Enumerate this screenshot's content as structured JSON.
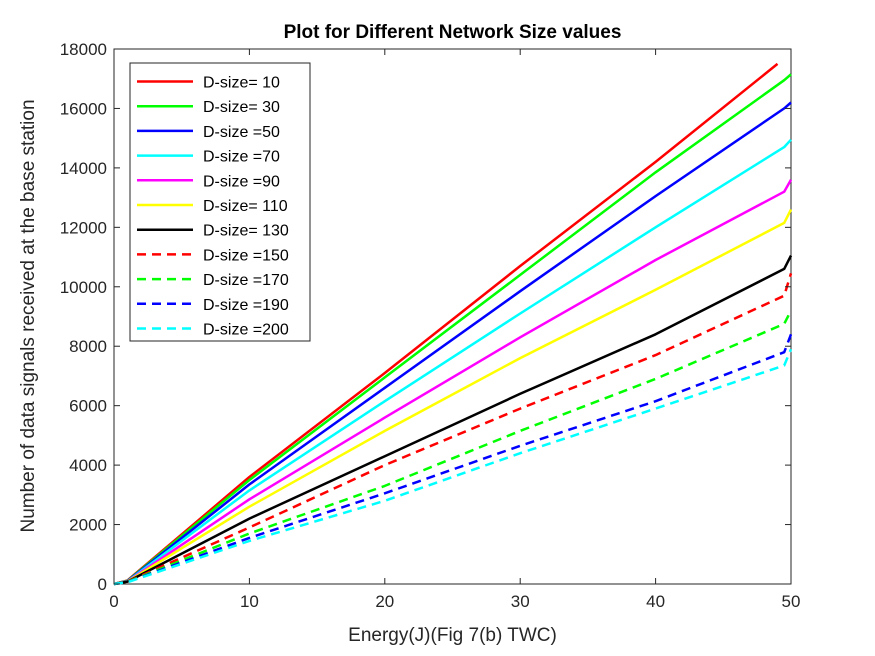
{
  "chart_data": {
    "type": "line",
    "title": "Plot for Different Network Size values",
    "xlabel": "Energy(J)(Fig 7(b) TWC)",
    "ylabel": "Number of data signals received at the base station",
    "xlim": [
      0,
      50
    ],
    "ylim": [
      0,
      18000
    ],
    "x_ticks": [
      "0",
      "10",
      "20",
      "30",
      "40",
      "50"
    ],
    "y_ticks": [
      "0",
      "2000",
      "4000",
      "6000",
      "8000",
      "10000",
      "12000",
      "14000",
      "16000",
      "18000"
    ],
    "grid": false,
    "legend_position": "top-left",
    "series": [
      {
        "name": "D-size= 10",
        "color": "#ff0000",
        "dashed": false,
        "x": [
          0,
          1,
          10,
          20,
          30,
          40,
          49
        ],
        "y": [
          0,
          120,
          3600,
          7100,
          10700,
          14200,
          17500
        ]
      },
      {
        "name": "D-size= 30",
        "color": "#00ff00",
        "dashed": false,
        "x": [
          0,
          1,
          10,
          20,
          30,
          40,
          49.5,
          50
        ],
        "y": [
          0,
          110,
          3500,
          6950,
          10400,
          13850,
          16950,
          17150
        ]
      },
      {
        "name": "D-size =50",
        "color": "#0000ff",
        "dashed": false,
        "x": [
          0,
          1,
          10,
          20,
          30,
          40,
          49.5,
          50
        ],
        "y": [
          0,
          100,
          3350,
          6600,
          9850,
          13050,
          16000,
          16200
        ]
      },
      {
        "name": "D-size =70",
        "color": "#00ffff",
        "dashed": false,
        "x": [
          0,
          1,
          10,
          20,
          30,
          40,
          49.5,
          50
        ],
        "y": [
          0,
          95,
          3150,
          6150,
          9100,
          12000,
          14700,
          14950
        ]
      },
      {
        "name": "D-size =90",
        "color": "#ff00ff",
        "dashed": false,
        "x": [
          0,
          1,
          10,
          20,
          30,
          40,
          49.5,
          50
        ],
        "y": [
          0,
          90,
          2850,
          5600,
          8300,
          10900,
          13200,
          13600
        ]
      },
      {
        "name": "D-size= 110",
        "color": "#ffff00",
        "dashed": false,
        "x": [
          0,
          1,
          10,
          20,
          30,
          40,
          49.5,
          50
        ],
        "y": [
          0,
          85,
          2600,
          5150,
          7600,
          9900,
          12150,
          12600
        ]
      },
      {
        "name": "D-size= 130",
        "color": "#000000",
        "dashed": false,
        "x": [
          0,
          1,
          10,
          20,
          30,
          40,
          49.5,
          50
        ],
        "y": [
          0,
          80,
          2200,
          4300,
          6400,
          8400,
          10600,
          11050
        ]
      },
      {
        "name": "D-size =150",
        "color": "#ff0000",
        "dashed": true,
        "x": [
          0,
          1,
          10,
          20,
          30,
          40,
          49.5,
          50
        ],
        "y": [
          0,
          75,
          1900,
          4000,
          5900,
          7700,
          9700,
          10450
        ]
      },
      {
        "name": "D-size =170",
        "color": "#00ff00",
        "dashed": true,
        "x": [
          0,
          1,
          10,
          20,
          30,
          40,
          49.5,
          50
        ],
        "y": [
          0,
          70,
          1700,
          3300,
          5150,
          6900,
          8750,
          9200
        ]
      },
      {
        "name": "D-size =190",
        "color": "#0000ff",
        "dashed": true,
        "x": [
          0,
          1,
          10,
          20,
          30,
          40,
          49.5,
          50
        ],
        "y": [
          0,
          65,
          1550,
          3050,
          4650,
          6150,
          7800,
          8400
        ]
      },
      {
        "name": "D-size =200",
        "color": "#00ffff",
        "dashed": true,
        "x": [
          0,
          1,
          10,
          20,
          30,
          40,
          49.5,
          50
        ],
        "y": [
          0,
          60,
          1450,
          2800,
          4400,
          5900,
          7350,
          7900
        ]
      }
    ]
  }
}
